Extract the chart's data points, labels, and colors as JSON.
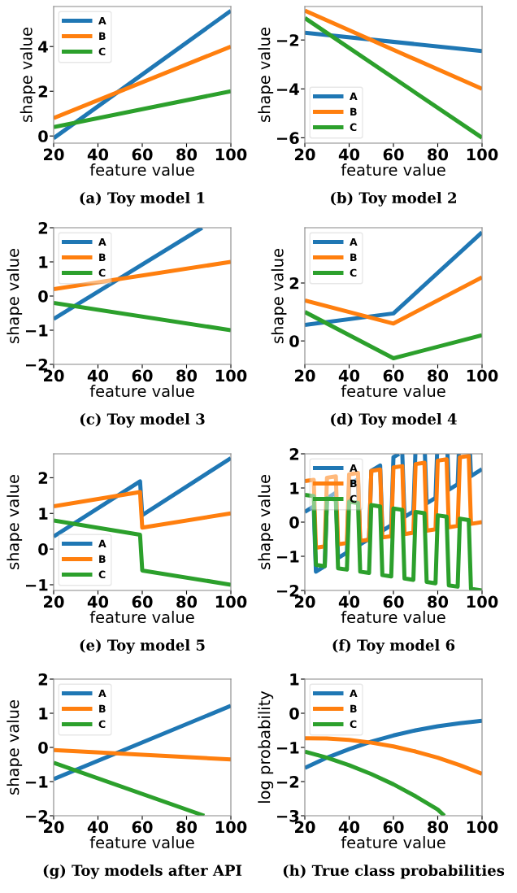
{
  "chart_data": [
    {
      "type": "line",
      "title": "(a) Toy model 1",
      "xlabel": "feature value",
      "ylabel": "shape value",
      "xlim": [
        20,
        100
      ],
      "xticks": [
        20,
        40,
        60,
        80,
        100
      ],
      "ylim": [
        -0.32,
        5.79
      ],
      "yticks": [
        0,
        2,
        4
      ],
      "grid": false,
      "legend": "top left",
      "line_style": "solid",
      "x": [
        20,
        100
      ],
      "series": [
        {
          "name": "A",
          "color": "#1f77b4",
          "values": [
            -0.1,
            5.6
          ]
        },
        {
          "name": "B",
          "color": "#ff7f0e",
          "values": [
            0.8,
            4.0
          ]
        },
        {
          "name": "C",
          "color": "#2ca02c",
          "values": [
            0.4,
            2.0
          ]
        }
      ]
    },
    {
      "type": "line",
      "title": "(b) Toy model 2",
      "xlabel": "feature value",
      "ylabel": "shape value",
      "xlim": [
        20,
        100
      ],
      "xticks": [
        20,
        40,
        60,
        80,
        100
      ],
      "ylim": [
        -6.22,
        -0.63
      ],
      "yticks": [
        {
          "value": -6,
          "label": "−6"
        },
        {
          "value": -4,
          "label": "−4"
        },
        {
          "value": -2,
          "label": "−2"
        }
      ],
      "grid": false,
      "legend": "bottom left",
      "line_style": "solid",
      "x": [
        20,
        100
      ],
      "series": [
        {
          "name": "A",
          "color": "#1f77b4",
          "values": [
            -1.7,
            -2.45
          ]
        },
        {
          "name": "B",
          "color": "#ff7f0e",
          "values": [
            -0.8,
            -4.0
          ]
        },
        {
          "name": "C",
          "color": "#2ca02c",
          "values": [
            -1.1,
            -6.0
          ]
        }
      ]
    },
    {
      "type": "line",
      "title": "(c) Toy model 3",
      "xlabel": "feature value",
      "ylabel": "shape value",
      "xlim": [
        20,
        100
      ],
      "xticks": [
        20,
        40,
        60,
        80,
        100
      ],
      "ylim": [
        -2,
        2
      ],
      "yticks": [
        {
          "value": -2,
          "label": "−2"
        },
        {
          "value": -1,
          "label": "−1"
        },
        0,
        1,
        2
      ],
      "grid": false,
      "legend": "top left",
      "line_style": "solid",
      "x": [
        20,
        100
      ],
      "series": [
        {
          "name": "A",
          "color": "#1f77b4",
          "x": [
            20,
            87
          ],
          "values": [
            -0.67,
            2.0
          ]
        },
        {
          "name": "B",
          "color": "#ff7f0e",
          "values": [
            0.2,
            1.0
          ]
        },
        {
          "name": "C",
          "color": "#2ca02c",
          "values": [
            -0.2,
            -1.0
          ]
        }
      ]
    },
    {
      "type": "line",
      "title": "(d) Toy model 4",
      "xlabel": "feature value",
      "ylabel": "shape value",
      "xlim": [
        20,
        100
      ],
      "xticks": [
        20,
        40,
        60,
        80,
        100
      ],
      "ylim": [
        -0.81,
        3.91
      ],
      "yticks": [
        0,
        2
      ],
      "grid": false,
      "legend": "top left",
      "line_style": "solid",
      "x": [
        20,
        60,
        100
      ],
      "series": [
        {
          "name": "A",
          "color": "#1f77b4",
          "values": [
            0.55,
            0.95,
            3.75
          ]
        },
        {
          "name": "B",
          "color": "#ff7f0e",
          "values": [
            1.4,
            0.6,
            2.2
          ]
        },
        {
          "name": "C",
          "color": "#2ca02c",
          "values": [
            1.0,
            -0.6,
            0.2
          ]
        }
      ]
    },
    {
      "type": "line",
      "title": "(e) Toy model 5",
      "xlabel": "feature value",
      "ylabel": "shape value",
      "xlim": [
        20,
        100
      ],
      "xticks": [
        20,
        40,
        60,
        80,
        100
      ],
      "ylim": [
        -1.16,
        2.67
      ],
      "yticks": [
        {
          "value": -1,
          "label": "−1"
        },
        0,
        1,
        2
      ],
      "grid": false,
      "legend": "bottom left",
      "line_style": "solid",
      "x": [
        20,
        59,
        60,
        100
      ],
      "series": [
        {
          "name": "A",
          "color": "#1f77b4",
          "values": [
            0.35,
            1.9,
            0.95,
            2.55
          ]
        },
        {
          "name": "B",
          "color": "#ff7f0e",
          "values": [
            1.2,
            1.6,
            0.6,
            1.0
          ]
        },
        {
          "name": "C",
          "color": "#2ca02c",
          "values": [
            0.8,
            0.4,
            -0.6,
            -1.0
          ]
        }
      ]
    },
    {
      "type": "line",
      "title": "(f) Toy model 6",
      "xlabel": "feature value",
      "ylabel": "shape value",
      "xlim": [
        20,
        100
      ],
      "xticks": [
        20,
        40,
        60,
        80,
        100
      ],
      "ylim": [
        -2,
        2
      ],
      "yticks": [
        {
          "value": -2,
          "label": "−2"
        },
        {
          "value": -1,
          "label": "−1"
        },
        0,
        1,
        2
      ],
      "grid": false,
      "legend": "top left",
      "line_style": "solid",
      "x": [
        20,
        24,
        25,
        29,
        30,
        34,
        35,
        39,
        40,
        44,
        45,
        49,
        50,
        54,
        55,
        59,
        60,
        64,
        65,
        69,
        70,
        74,
        75,
        79,
        80,
        84,
        85,
        89,
        90,
        94,
        95,
        100
      ],
      "series": [
        {
          "name": "A",
          "color": "#1f77b4",
          "x": [
            20,
            24,
            25,
            29,
            30,
            34,
            35,
            39,
            40,
            44,
            45,
            49,
            50,
            54,
            55,
            59,
            60,
            62.5,
            63,
            64,
            65,
            69,
            69.9,
            70,
            74.2,
            75,
            79,
            79.7,
            80,
            84.4,
            85,
            89,
            89.5,
            90,
            94.6,
            95,
            100
          ],
          "values": [
            0.3,
            0.46,
            -1.45,
            -1.29,
            0.7,
            0.86,
            -1.05,
            -0.89,
            1.1,
            1.26,
            -0.65,
            -0.49,
            1.5,
            1.66,
            -0.25,
            -0.09,
            1.9,
            2.0,
            null,
            2.0,
            0.15,
            0.31,
            2.0,
            null,
            2.0,
            0.55,
            0.71,
            2.0,
            null,
            2.0,
            0.95,
            1.11,
            2.0,
            null,
            2.0,
            1.35,
            1.55
          ]
        },
        {
          "name": "B",
          "color": "#ff7f0e",
          "values": [
            1.2,
            1.24,
            -0.75,
            -0.71,
            1.3,
            1.34,
            -0.65,
            -0.61,
            1.4,
            1.44,
            -0.55,
            -0.51,
            1.5,
            1.54,
            -0.45,
            -0.41,
            1.6,
            1.64,
            -0.35,
            -0.31,
            1.7,
            1.74,
            -0.25,
            -0.21,
            1.8,
            1.84,
            -0.15,
            -0.11,
            1.9,
            1.94,
            -0.05,
            0.0
          ]
        },
        {
          "name": "C",
          "color": "#2ca02c",
          "values": [
            0.8,
            0.76,
            -1.25,
            -1.29,
            0.7,
            0.66,
            -1.35,
            -1.39,
            0.6,
            0.56,
            -1.45,
            -1.49,
            0.5,
            0.46,
            -1.55,
            -1.59,
            0.4,
            0.36,
            -1.65,
            -1.69,
            0.3,
            0.26,
            -1.75,
            -1.79,
            0.2,
            0.16,
            -1.85,
            -1.89,
            0.1,
            0.06,
            -1.95,
            -2.0
          ]
        }
      ]
    },
    {
      "type": "line",
      "title": "(g) Toy models after API",
      "xlabel": "feature value",
      "ylabel": "shape value",
      "xlim": [
        20,
        100
      ],
      "xticks": [
        20,
        40,
        60,
        80,
        100
      ],
      "ylim": [
        -2,
        2
      ],
      "yticks": [
        {
          "value": -2,
          "label": "−2"
        },
        {
          "value": -1,
          "label": "−1"
        },
        0,
        1,
        2
      ],
      "grid": false,
      "legend": "top left",
      "line_style": "solid",
      "x": [
        20,
        100
      ],
      "series": [
        {
          "name": "A",
          "color": "#1f77b4",
          "values": [
            -0.93,
            1.22
          ]
        },
        {
          "name": "B",
          "color": "#ff7f0e",
          "values": [
            -0.08,
            -0.35
          ]
        },
        {
          "name": "C",
          "color": "#2ca02c",
          "x": [
            20,
            88
          ],
          "values": [
            -0.45,
            -2.0
          ]
        }
      ]
    },
    {
      "type": "line",
      "title": "(h) True class probabilities",
      "xlabel": "feature value",
      "ylabel": "log probability",
      "xlim": [
        20,
        100
      ],
      "xticks": [
        20,
        40,
        60,
        80,
        100
      ],
      "ylim": [
        -3,
        1
      ],
      "yticks": [
        {
          "value": -3,
          "label": "−3"
        },
        {
          "value": -2,
          "label": "−2"
        },
        {
          "value": -1,
          "label": "−1"
        },
        0,
        1
      ],
      "grid": false,
      "legend": "top left",
      "line_style": "solid",
      "x": [
        20,
        30,
        40,
        50,
        60,
        70,
        80,
        90,
        100
      ],
      "series": [
        {
          "name": "A",
          "color": "#1f77b4",
          "values": [
            -1.6,
            -1.3,
            -1.05,
            -0.83,
            -0.65,
            -0.5,
            -0.38,
            -0.29,
            -0.22
          ]
        },
        {
          "name": "B",
          "color": "#ff7f0e",
          "values": [
            -0.73,
            -0.74,
            -0.78,
            -0.86,
            -0.97,
            -1.12,
            -1.3,
            -1.52,
            -1.77
          ]
        },
        {
          "name": "C",
          "color": "#2ca02c",
          "x": [
            20,
            30,
            40,
            50,
            60,
            70,
            80,
            83
          ],
          "values": [
            -1.12,
            -1.3,
            -1.52,
            -1.78,
            -2.08,
            -2.43,
            -2.82,
            -3.0
          ]
        }
      ]
    }
  ]
}
